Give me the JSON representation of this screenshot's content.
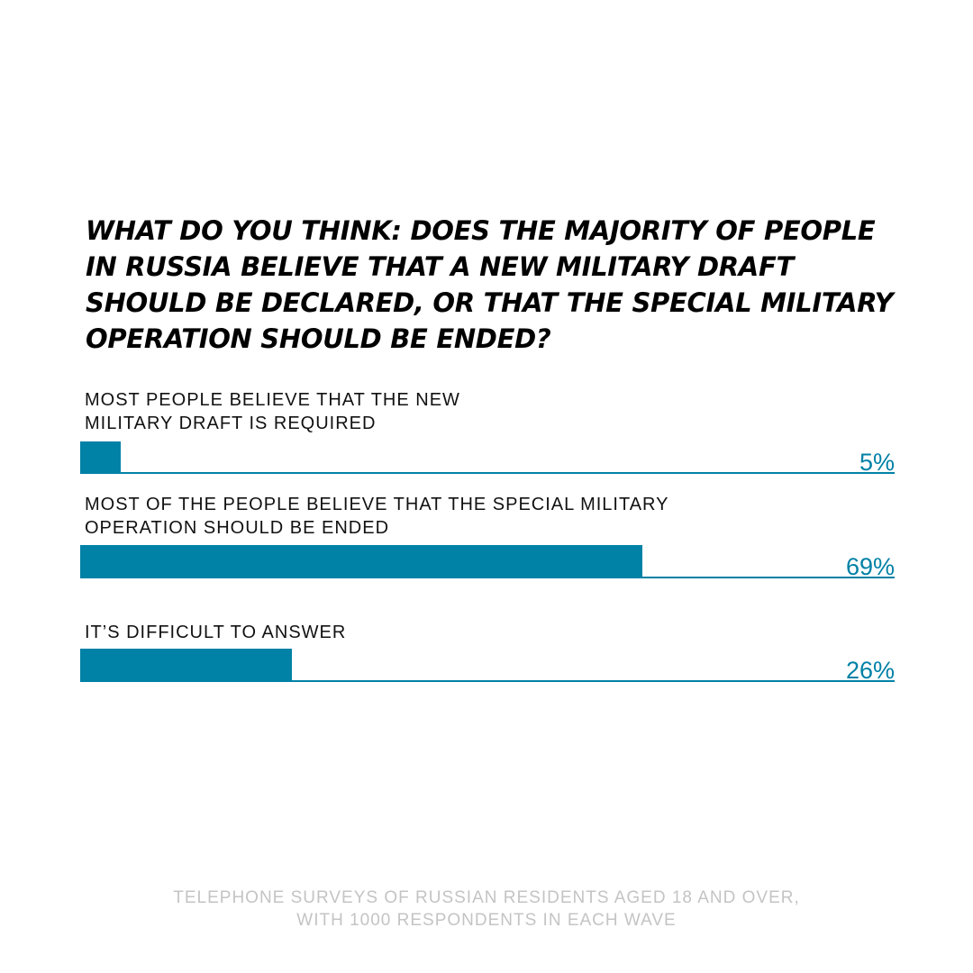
{
  "chart_data": {
    "type": "bar",
    "orientation": "horizontal",
    "title": "WHAT DO YOU THINK: DOES THE MAJORITY OF PEOPLE IN RUSSIA BELIEVE THAT A NEW MILITARY DRAFT SHOULD BE DECLARED, OR THAT THE SPECIAL MILITARY OPERATION SHOULD BE ENDED?",
    "categories": [
      "MOST PEOPLE BELIEVE THAT THE NEW\nMILITARY DRAFT IS REQUIRED",
      "MOST OF THE PEOPLE BELIEVE THAT THE SPECIAL MILITARY\nOPERATION SHOULD BE ENDED",
      "IT’S DIFFICULT TO ANSWER"
    ],
    "values": [
      5,
      69,
      26
    ],
    "value_labels": [
      "5%",
      "69%",
      "26%"
    ],
    "xlim": [
      0,
      100
    ],
    "grid": false,
    "bar_color": "#0081a6"
  },
  "footnote": "TELEPHONE SURVEYS OF RUSSIAN RESIDENTS AGED 18 AND OVER,\nWITH 1000 RESPONDENTS IN EACH WAVE"
}
